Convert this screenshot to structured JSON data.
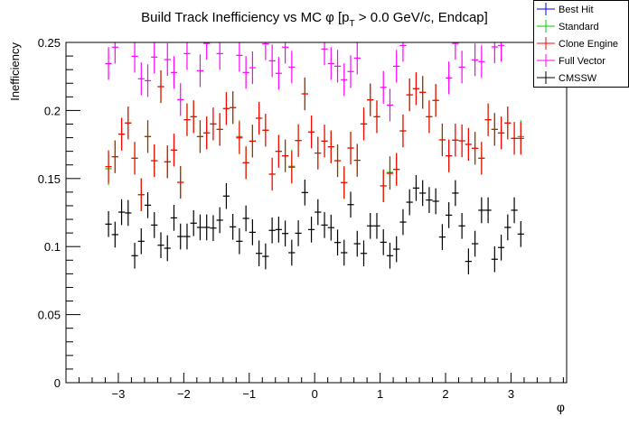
{
  "chart_data": {
    "type": "scatter",
    "title": "Build Track Inefficiency vs MC φ [p",
    "title_sub": "T",
    "title_rest": " > 0.0 GeV/c, Endcap]",
    "xlabel": "φ",
    "ylabel": "Inefficiency",
    "xlim": [
      -3.8,
      3.85
    ],
    "ylim": [
      0,
      0.25
    ],
    "x_ticks": [
      "−3",
      "−2",
      "−1",
      "0",
      "1",
      "2",
      "3"
    ],
    "x_tick_values": [
      -3,
      -2,
      -1,
      0,
      1,
      2,
      3
    ],
    "y_ticks": [
      "0",
      "0.05",
      "0.1",
      "0.15",
      "0.2",
      "0.25"
    ],
    "y_tick_values": [
      0,
      0.05,
      0.1,
      0.15,
      0.2,
      0.25
    ],
    "bins": {
      "start": -3.2,
      "width": 0.1,
      "count": 64
    },
    "legend_position": "top-right",
    "series": [
      {
        "name": "Best Hit",
        "color": "#0000ff",
        "err": 0.012,
        "values": []
      },
      {
        "name": "Standard",
        "color": "#00cc00",
        "err": 0.012,
        "values": [
          0.1572,
          0.166,
          0.1826,
          0.1908,
          0.1649,
          0.1381,
          0.1808,
          0.1631,
          0.2175,
          0.1623,
          0.1709,
          0.1472,
          0.1932,
          0.1954,
          0.1808,
          0.1835,
          0.1901,
          0.1861,
          0.2014,
          0.2021,
          0.1808,
          0.1616,
          0.1775,
          0.1943,
          0.1855,
          0.1532,
          0.17,
          0.1667,
          0.159,
          0.1779,
          0.2122,
          0.1842,
          0.1687,
          0.1775,
          0.1733,
          0.1631,
          0.147,
          0.1724,
          0.1634,
          0.1901,
          0.2078,
          0.1954,
          0.1446,
          0.1545,
          0.1567,
          0.185,
          0.2115,
          0.216,
          0.2133,
          0.1954,
          0.2074,
          0.1784,
          0.1667,
          0.1782,
          0.1777,
          0.1751,
          0.1722,
          0.1649,
          0.1932,
          0.1861,
          0.1835,
          0.1908,
          0.1795,
          0.1808
        ]
      },
      {
        "name": "Clone Engine",
        "color": "#ff0000",
        "err": 0.012,
        "values": [
          0.1587,
          0.166,
          0.1826,
          0.1908,
          0.1649,
          0.1381,
          0.1808,
          0.1631,
          0.2175,
          0.1623,
          0.1709,
          0.1472,
          0.1932,
          0.1954,
          0.1808,
          0.1835,
          0.1901,
          0.1861,
          0.2014,
          0.2021,
          0.1799,
          0.1616,
          0.1775,
          0.1943,
          0.1855,
          0.1532,
          0.17,
          0.1667,
          0.1583,
          0.1779,
          0.2122,
          0.1842,
          0.1687,
          0.1775,
          0.1733,
          0.1631,
          0.147,
          0.1724,
          0.1634,
          0.1901,
          0.2078,
          0.1954,
          0.1446,
          0.1538,
          0.1567,
          0.185,
          0.2115,
          0.216,
          0.2133,
          0.1954,
          0.2074,
          0.1784,
          0.1667,
          0.1782,
          0.1777,
          0.1751,
          0.1722,
          0.1649,
          0.1932,
          0.1861,
          0.1835,
          0.1908,
          0.1795,
          0.1795
        ]
      },
      {
        "name": "Full Vector",
        "color": "#ff00ff",
        "err": 0.012,
        "values": [
          0.2345,
          0.2465,
          null,
          null,
          0.2398,
          0.2233,
          0.2219,
          0.2392,
          null,
          0.2374,
          0.2279,
          0.208,
          0.2418,
          null,
          0.2292,
          0.2493,
          null,
          0.2418,
          null,
          null,
          0.2405,
          0.2279,
          0.2314,
          null,
          0.249,
          0.2365,
          0.2273,
          0.2465,
          0.2319,
          null,
          null,
          null,
          null,
          0.2452,
          0.2345,
          0.2325,
          0.2226,
          0.2286,
          0.2385,
          null,
          null,
          null,
          0.217,
          0.204,
          0.2325,
          0.2478,
          null,
          null,
          null,
          null,
          null,
          null,
          0.2239,
          0.2493,
          0.2319,
          null,
          0.2372,
          0.2359,
          null,
          0.2467,
          0.2478,
          null,
          null,
          null
        ]
      },
      {
        "name": "CMSSW",
        "color": "#000000",
        "err": 0.0095,
        "values": [
          0.1165,
          0.1088,
          0.1253,
          0.1247,
          0.0933,
          0.1039,
          0.1304,
          0.1158,
          0.101,
          0.0988,
          0.1211,
          0.1074,
          0.1074,
          0.1172,
          0.1141,
          0.1141,
          0.1136,
          0.1194,
          0.1371,
          0.1145,
          0.1039,
          0.1207,
          0.1105,
          0.095,
          0.0928,
          0.1119,
          0.1125,
          0.1096,
          0.0955,
          0.1098,
          0.1397,
          0.1125,
          0.1253,
          0.1158,
          0.1139,
          0.103,
          0.0955,
          0.1308,
          0.1021,
          0.095,
          0.1152,
          0.1152,
          0.1032,
          0.0933,
          0.0981,
          0.118,
          0.1326,
          0.143,
          0.1393,
          0.1342,
          0.1333,
          0.107,
          0.1231,
          0.1393,
          0.1152,
          0.0891,
          0.1021,
          0.1267,
          0.1267,
          0.0907,
          0.0993,
          0.1141,
          0.1267,
          0.1092
        ]
      }
    ]
  }
}
